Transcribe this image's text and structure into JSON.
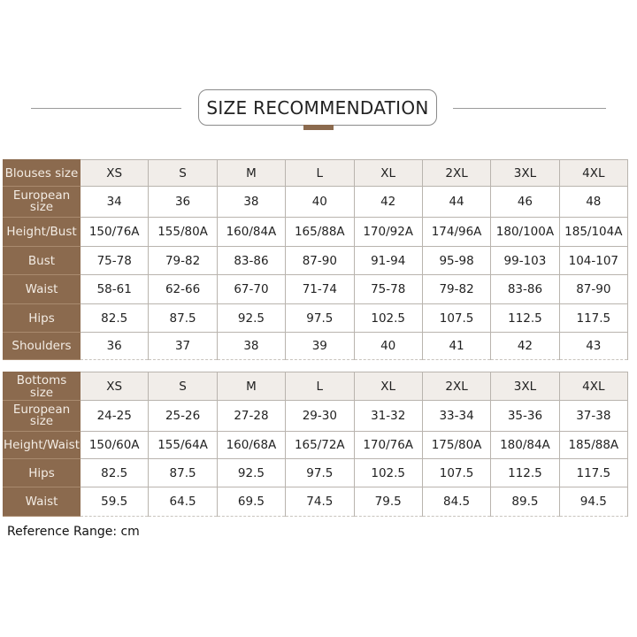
{
  "title": "SIZE RECOMMENDATION",
  "colors": {
    "label_bg": "#8b6a4e",
    "header_bg": "#f1ede9"
  },
  "blouses": {
    "rows": [
      {
        "label": "Blouses size",
        "values": [
          "XS",
          "S",
          "M",
          "L",
          "XL",
          "2XL",
          "3XL",
          "4XL"
        ]
      },
      {
        "label": "European size",
        "values": [
          "34",
          "36",
          "38",
          "40",
          "42",
          "44",
          "46",
          "48"
        ]
      },
      {
        "label": "Height/Bust",
        "values": [
          "150/76A",
          "155/80A",
          "160/84A",
          "165/88A",
          "170/92A",
          "174/96A",
          "180/100A",
          "185/104A"
        ]
      },
      {
        "label": "Bust",
        "values": [
          "75-78",
          "79-82",
          "83-86",
          "87-90",
          "91-94",
          "95-98",
          "99-103",
          "104-107"
        ]
      },
      {
        "label": "Waist",
        "values": [
          "58-61",
          "62-66",
          "67-70",
          "71-74",
          "75-78",
          "79-82",
          "83-86",
          "87-90"
        ]
      },
      {
        "label": "Hips",
        "values": [
          "82.5",
          "87.5",
          "92.5",
          "97.5",
          "102.5",
          "107.5",
          "112.5",
          "117.5"
        ]
      },
      {
        "label": "Shoulders",
        "values": [
          "36",
          "37",
          "38",
          "39",
          "40",
          "41",
          "42",
          "43"
        ]
      }
    ]
  },
  "bottoms": {
    "rows": [
      {
        "label": "Bottoms size",
        "values": [
          "XS",
          "S",
          "M",
          "L",
          "XL",
          "2XL",
          "3XL",
          "4XL"
        ]
      },
      {
        "label": "European size",
        "values": [
          "24-25",
          "25-26",
          "27-28",
          "29-30",
          "31-32",
          "33-34",
          "35-36",
          "37-38"
        ]
      },
      {
        "label": "Height/Waist",
        "values": [
          "150/60A",
          "155/64A",
          "160/68A",
          "165/72A",
          "170/76A",
          "175/80A",
          "180/84A",
          "185/88A"
        ]
      },
      {
        "label": "Hips",
        "values": [
          "82.5",
          "87.5",
          "92.5",
          "97.5",
          "102.5",
          "107.5",
          "112.5",
          "117.5"
        ]
      },
      {
        "label": "Waist",
        "values": [
          "59.5",
          "64.5",
          "69.5",
          "74.5",
          "79.5",
          "84.5",
          "89.5",
          "94.5"
        ]
      }
    ]
  },
  "note": "Reference Range: cm"
}
